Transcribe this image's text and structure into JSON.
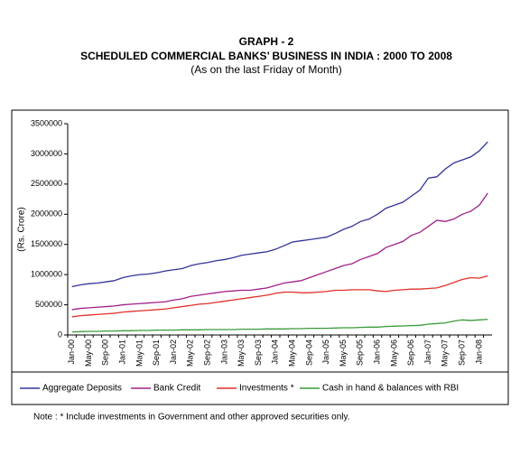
{
  "chart_data": {
    "type": "line",
    "title": "GRAPH - 2",
    "subtitle": "SCHEDULED COMMERCIAL BANKS’ BUSINESS IN INDIA : 2000 TO 2008",
    "caption": "(As on the last Friday of Month)",
    "ylabel": "(Rs. Crore)",
    "note": "Note : * Include investments in Government and other approved securities only.",
    "categories": [
      "Jan-00",
      null,
      "May-00",
      null,
      "Sep-00",
      null,
      "Jan-01",
      null,
      "May-01",
      null,
      "Sep-01",
      null,
      "Jan-02",
      null,
      "May-02",
      null,
      "Sep-02",
      null,
      "Jan-03",
      null,
      "May-03",
      null,
      "Sep-03",
      null,
      "Jan-04",
      null,
      "May-04",
      null,
      "Sep-04",
      null,
      "Jan-05",
      null,
      "May-05",
      null,
      "Sep-05",
      null,
      "Jan-06",
      null,
      "May-06",
      null,
      "Sep-06",
      null,
      "Jan-07",
      null,
      "May-07",
      null,
      "Sep-07",
      null,
      "Jan-08",
      null
    ],
    "series": [
      {
        "name": "Aggregate Deposits",
        "color": "#333399",
        "values": [
          800000,
          830000,
          850000,
          860000,
          880000,
          900000,
          950000,
          980000,
          1000000,
          1010000,
          1030000,
          1060000,
          1080000,
          1100000,
          1150000,
          1180000,
          1200000,
          1230000,
          1250000,
          1280000,
          1320000,
          1340000,
          1360000,
          1380000,
          1420000,
          1480000,
          1540000,
          1560000,
          1580000,
          1600000,
          1620000,
          1680000,
          1750000,
          1800000,
          1880000,
          1920000,
          2000000,
          2100000,
          2150000,
          2200000,
          2300000,
          2400000,
          2600000,
          2620000,
          2750000,
          2850000,
          2900000,
          2950000,
          3050000,
          3200000
        ]
      },
      {
        "name": "Bank Credit",
        "color": "#a0208a",
        "values": [
          420000,
          440000,
          450000,
          460000,
          470000,
          480000,
          500000,
          510000,
          520000,
          530000,
          540000,
          550000,
          580000,
          600000,
          640000,
          660000,
          680000,
          700000,
          720000,
          730000,
          740000,
          740000,
          760000,
          780000,
          820000,
          860000,
          880000,
          900000,
          950000,
          1000000,
          1050000,
          1100000,
          1150000,
          1180000,
          1250000,
          1300000,
          1350000,
          1450000,
          1500000,
          1550000,
          1650000,
          1700000,
          1800000,
          1900000,
          1880000,
          1920000,
          2000000,
          2050000,
          2150000,
          2350000
        ]
      },
      {
        "name": "Investments *",
        "color": "#e0302a",
        "values": [
          300000,
          320000,
          330000,
          340000,
          350000,
          360000,
          380000,
          390000,
          400000,
          410000,
          420000,
          430000,
          450000,
          470000,
          490000,
          510000,
          520000,
          540000,
          560000,
          580000,
          600000,
          620000,
          640000,
          660000,
          690000,
          710000,
          710000,
          700000,
          700000,
          710000,
          720000,
          740000,
          740000,
          750000,
          750000,
          750000,
          730000,
          720000,
          740000,
          750000,
          760000,
          760000,
          770000,
          780000,
          820000,
          870000,
          920000,
          950000,
          940000,
          980000
        ]
      },
      {
        "name": "Cash in hand & balances with RBI",
        "color": "#3a9a3a",
        "values": [
          50000,
          55000,
          60000,
          60000,
          65000,
          65000,
          70000,
          70000,
          75000,
          75000,
          80000,
          80000,
          80000,
          85000,
          85000,
          85000,
          90000,
          90000,
          90000,
          90000,
          95000,
          95000,
          95000,
          100000,
          100000,
          100000,
          105000,
          105000,
          110000,
          110000,
          110000,
          115000,
          120000,
          120000,
          125000,
          130000,
          130000,
          140000,
          145000,
          150000,
          155000,
          160000,
          180000,
          190000,
          200000,
          230000,
          250000,
          240000,
          250000,
          260000
        ]
      }
    ],
    "ylim": [
      0,
      3500000
    ],
    "yticks": [
      0,
      500000,
      1000000,
      1500000,
      2000000,
      2500000,
      3000000,
      3500000
    ],
    "grid": false,
    "legend": "bottom"
  }
}
